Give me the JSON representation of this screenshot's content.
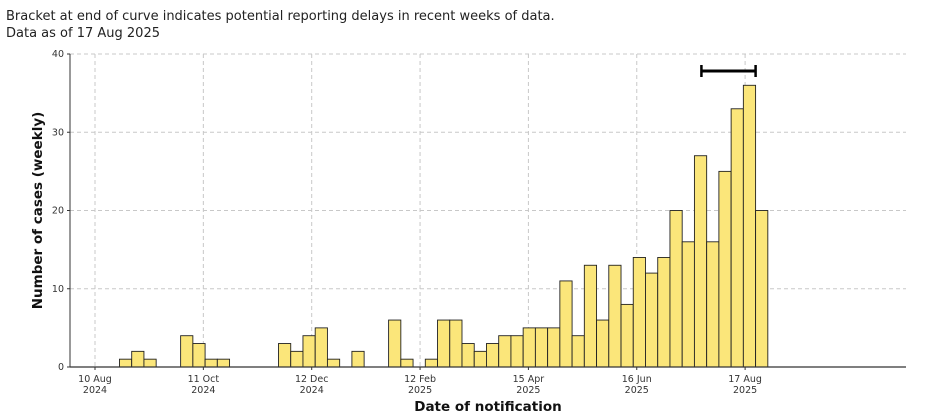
{
  "notes": {
    "line1": "Bracket at end of curve indicates potential reporting delays in recent weeks of data.",
    "line2": "Data as of 17 Aug 2025"
  },
  "colors": {
    "bar_fill": "#fbe67a",
    "bar_stroke": "#222222",
    "grid": "#c8c8c8"
  },
  "chart_data": {
    "type": "bar",
    "xlabel": "Date of notification",
    "ylabel": "Number of cases (weekly)",
    "ylim": [
      0,
      40
    ],
    "yticks": [
      0,
      10,
      20,
      30,
      40
    ],
    "x_start": "2024-08-10",
    "week_days": 7,
    "xticks": [
      {
        "date": "2024-08-10",
        "line1": "10 Aug",
        "line2": "2024"
      },
      {
        "date": "2024-10-11",
        "line1": "11 Oct",
        "line2": "2024"
      },
      {
        "date": "2024-12-12",
        "line1": "12 Dec",
        "line2": "2024"
      },
      {
        "date": "2025-02-12",
        "line1": "12 Feb",
        "line2": "2025"
      },
      {
        "date": "2025-04-15",
        "line1": "15 Apr",
        "line2": "2025"
      },
      {
        "date": "2025-06-16",
        "line1": "16 Jun",
        "line2": "2025"
      },
      {
        "date": "2025-08-17",
        "line1": "17 Aug",
        "line2": "2025"
      }
    ],
    "values": [
      0,
      0,
      1,
      2,
      1,
      0,
      0,
      4,
      3,
      1,
      1,
      0,
      0,
      0,
      0,
      3,
      2,
      4,
      5,
      1,
      0,
      2,
      0,
      0,
      6,
      1,
      0,
      1,
      6,
      6,
      3,
      2,
      3,
      4,
      4,
      5,
      5,
      5,
      11,
      4,
      13,
      6,
      13,
      8,
      14,
      12,
      14,
      20,
      16,
      27,
      16,
      25,
      33,
      36,
      20
    ],
    "delay_bracket": {
      "from": "2025-07-23",
      "to": "2025-08-23"
    },
    "grid": true
  }
}
